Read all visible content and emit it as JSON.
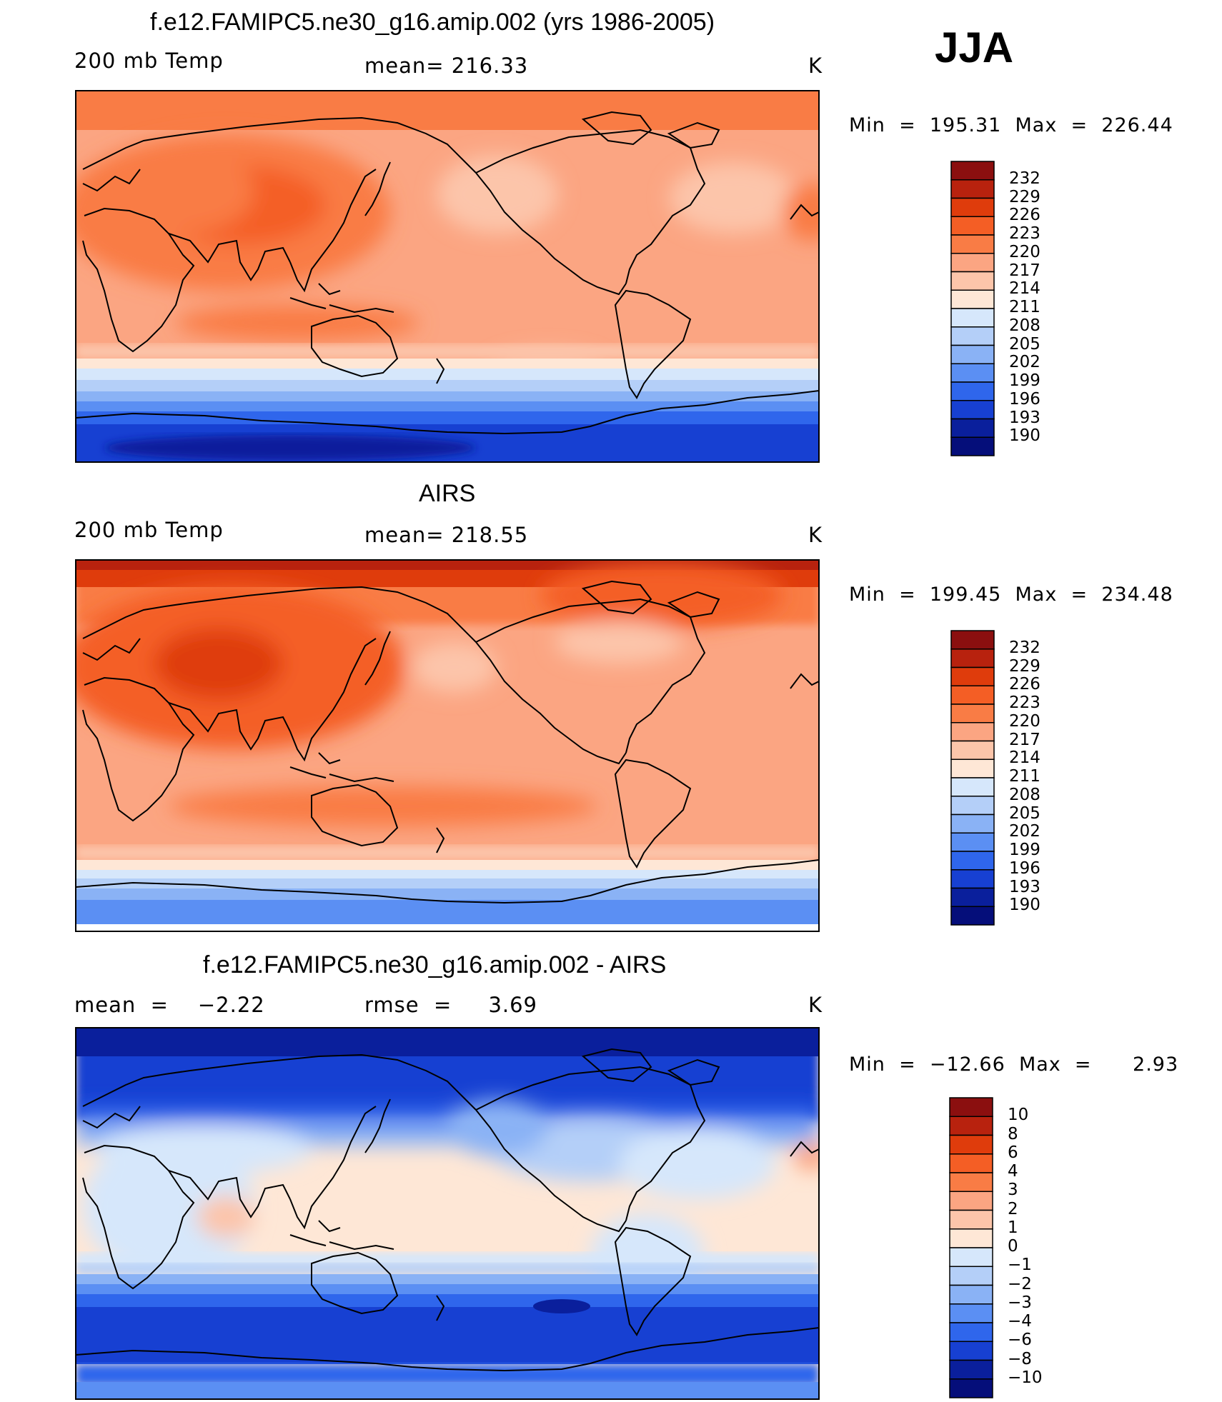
{
  "season": "JJA",
  "panels": [
    {
      "id": "model",
      "title": "f.e12.FAMIPC5.ne30_g16.amip.002 (yrs 1986-2005)",
      "left_label": "200 mb Temp",
      "center_label": "mean= 216.33",
      "right_label": "K",
      "stats": "Min  =  195.31  Max  =  226.44",
      "colorbar_levels": [
        "232",
        "229",
        "226",
        "223",
        "220",
        "217",
        "214",
        "211",
        "208",
        "205",
        "202",
        "199",
        "196",
        "193",
        "190"
      ]
    },
    {
      "id": "obs",
      "title": "AIRS",
      "left_label": "200 mb Temp",
      "center_label": "mean= 218.55",
      "right_label": "K",
      "stats": "Min  =  199.45  Max  =  234.48",
      "colorbar_levels": [
        "232",
        "229",
        "226",
        "223",
        "220",
        "217",
        "214",
        "211",
        "208",
        "205",
        "202",
        "199",
        "196",
        "193",
        "190"
      ]
    },
    {
      "id": "diff",
      "title": "f.e12.FAMIPC5.ne30_g16.amip.002 - AIRS",
      "left_label": "mean  =    −2.22",
      "center_label": "rmse  =     3.69",
      "right_label": "K",
      "stats": "Min  =  −12.66  Max  =      2.93",
      "colorbar_levels": [
        "10",
        "8",
        "6",
        "4",
        "3",
        "2",
        "1",
        "0",
        "−1",
        "−2",
        "−3",
        "−4",
        "−6",
        "−8",
        "−10"
      ]
    }
  ],
  "colors": {
    "colorbar_top_to_bottom": [
      "#8b0f0f",
      "#b8220e",
      "#df3c0c",
      "#f45e25",
      "#f97c45",
      "#fba582",
      "#fcc5aa",
      "#fee7d6",
      "#d6e7fb",
      "#b4cff8",
      "#8ab2f5",
      "#5b8ff3",
      "#2f66ec",
      "#1740d2",
      "#0a1f9c",
      "#050e7a"
    ]
  }
}
